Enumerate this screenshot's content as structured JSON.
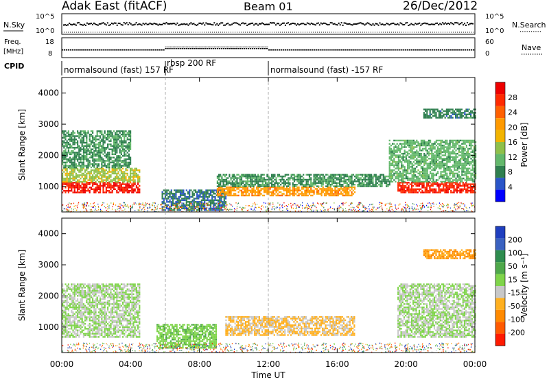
{
  "header": {
    "station": "Adak East (fitACF)",
    "beam": "Beam 01",
    "date": "26/Dec/2012"
  },
  "panels": {
    "nsky": {
      "label": "N.Sky",
      "right_label": "N.Search",
      "ticks_left": [
        "10^5",
        "10^0"
      ],
      "ticks_right": [
        "10^5",
        "10^0"
      ]
    },
    "freq": {
      "label_line1": "Freq.",
      "label_line2": "[MHz]",
      "right_label": "Nave",
      "ticks_left": [
        "18",
        "8"
      ],
      "ticks_right": [
        "60",
        "0"
      ]
    },
    "cpid": {
      "label": "CPID",
      "segments": [
        {
          "label": "normalsound (fast) 157 RF",
          "start_hour": 0,
          "end_hour": 6
        },
        {
          "label": "rbsp 200 RF",
          "start_hour": 6,
          "end_hour": 12
        },
        {
          "label": "normalsound (fast) -157 RF",
          "start_hour": 12,
          "end_hour": 24
        }
      ]
    }
  },
  "x_axis": {
    "label": "Time UT",
    "ticks": [
      "00:00",
      "04:00",
      "08:00",
      "12:00",
      "16:00",
      "20:00",
      "00:00"
    ]
  },
  "y_axis": {
    "label": "Slant Range [km]",
    "ticks": [
      "1000",
      "2000",
      "3000",
      "4000"
    ]
  },
  "colorbars": {
    "power": {
      "label": "Power [dB]",
      "ticks": [
        "28",
        "24",
        "20",
        "16",
        "12",
        "8",
        "4"
      ],
      "colors": [
        "#0000ff",
        "#2a55c8",
        "#2f7f4f",
        "#63b86b",
        "#8fc04a",
        "#f2b400",
        "#ff9a00",
        "#ff6000",
        "#ff2a00",
        "#ee0000"
      ]
    },
    "velocity": {
      "label": "Velocity [m s⁻¹]",
      "ticks": [
        "200",
        "100",
        "50",
        "15",
        "-15",
        "-50",
        "-100",
        "-200"
      ],
      "colors": [
        "#1f3fbf",
        "#3a62c0",
        "#2e8c4f",
        "#4fa84a",
        "#7fd44a",
        "#c8c8c8",
        "#ffb020",
        "#ff8a00",
        "#ff5a00",
        "#ff1a00"
      ]
    }
  },
  "chart_data": [
    {
      "type": "heatmap",
      "title": "Power [dB]",
      "xlabel": "Time UT",
      "ylabel": "Slant Range [km]",
      "x_range_hours": [
        0,
        24
      ],
      "ylim": [
        180,
        4500
      ],
      "color_range": [
        0,
        32
      ],
      "regions": [
        {
          "t0": 0.0,
          "t1": 4.5,
          "r0": 800,
          "r1": 1150,
          "value": 29
        },
        {
          "t0": 0.0,
          "t1": 4.5,
          "r0": 1150,
          "r1": 1600,
          "value": 15
        },
        {
          "t0": 0.0,
          "t1": 4.0,
          "r0": 1600,
          "r1": 2800,
          "value": 9
        },
        {
          "t0": 5.8,
          "t1": 9.5,
          "r0": 250,
          "r1": 900,
          "value": 7
        },
        {
          "t0": 9.0,
          "t1": 17.0,
          "r0": 700,
          "r1": 1000,
          "value": 21
        },
        {
          "t0": 9.0,
          "t1": 19.0,
          "r0": 1000,
          "r1": 1400,
          "value": 9
        },
        {
          "t0": 19.5,
          "t1": 24.0,
          "r0": 800,
          "r1": 1150,
          "value": 28
        },
        {
          "t0": 19.0,
          "t1": 24.0,
          "r0": 1150,
          "r1": 2500,
          "value": 11
        },
        {
          "t0": 21.0,
          "t1": 24.0,
          "r0": 3200,
          "r1": 3500,
          "value": 8
        }
      ]
    },
    {
      "type": "heatmap",
      "title": "Velocity [m s⁻¹]",
      "xlabel": "Time UT",
      "ylabel": "Slant Range [km]",
      "x_range_hours": [
        0,
        24
      ],
      "ylim": [
        180,
        4500
      ],
      "color_range": [
        -200,
        200
      ],
      "regions": [
        {
          "t0": 0.0,
          "t1": 4.5,
          "r0": 700,
          "r1": 2400,
          "value": 0
        },
        {
          "t0": 5.5,
          "t1": 9.0,
          "r0": 350,
          "r1": 1100,
          "value": 25
        },
        {
          "t0": 9.5,
          "t1": 17.0,
          "r0": 750,
          "r1": 1350,
          "value": -45
        },
        {
          "t0": 19.5,
          "t1": 24.0,
          "r0": 700,
          "r1": 2400,
          "value": 0
        },
        {
          "t0": 21.0,
          "t1": 24.0,
          "r0": 3200,
          "r1": 3500,
          "value": -80
        }
      ]
    }
  ]
}
